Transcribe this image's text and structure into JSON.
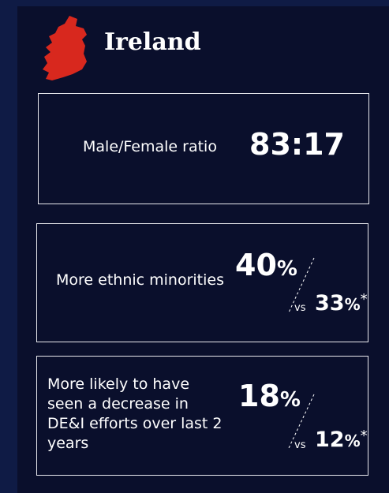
{
  "header": {
    "title": "Ireland"
  },
  "cards": [
    {
      "label": "Male/Female ratio",
      "value": "83:17"
    },
    {
      "label": "More ethnic minorities",
      "value": "40",
      "unit": "%",
      "compare_prefix": "vs",
      "compare_value": "33",
      "compare_unit": "%",
      "compare_note": "*"
    },
    {
      "label": "More likely to have seen a decrease in DE&I efforts over last 2 years",
      "value": "18",
      "unit": "%",
      "compare_prefix": "vs",
      "compare_value": "12",
      "compare_unit": "%",
      "compare_note": "*"
    }
  ]
}
